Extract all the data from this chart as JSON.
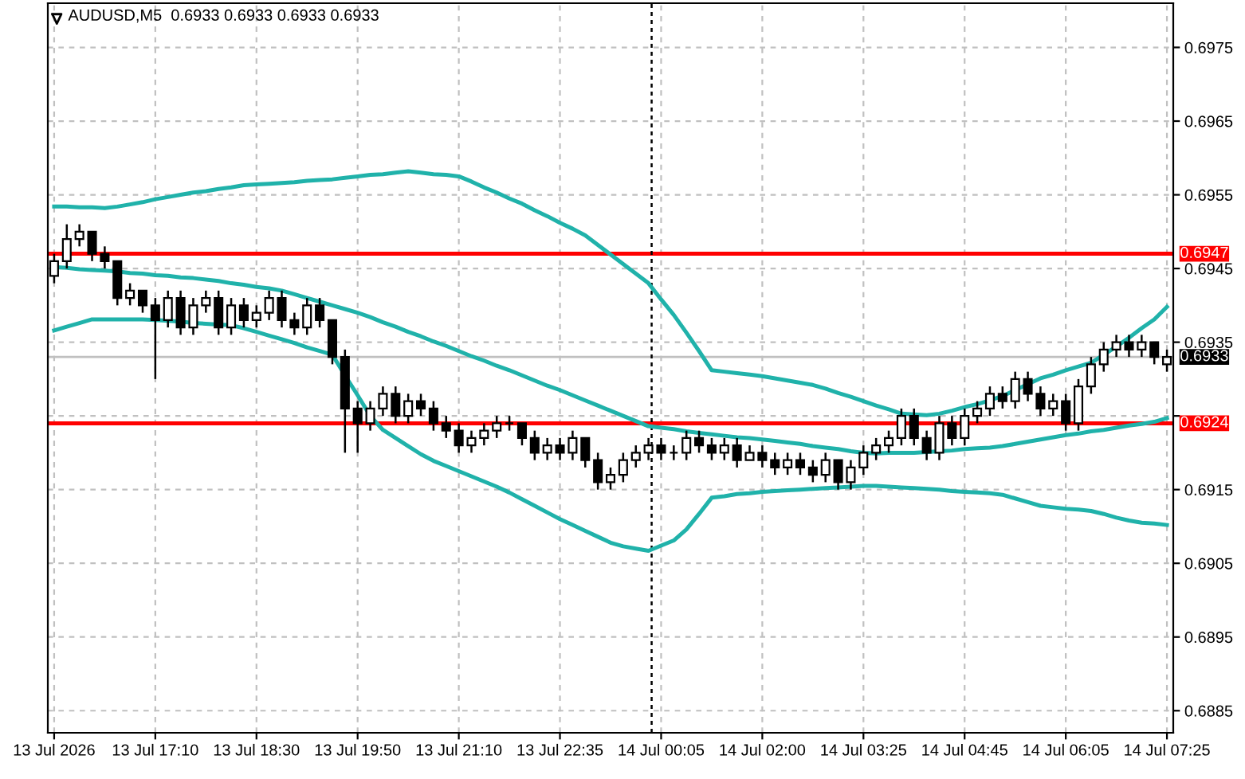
{
  "chart_data": {
    "type": "candlestick",
    "title": "AUDUSD,M5  0.6933 0.6933 0.6933 0.6933",
    "categories": [
      "13 Jul 2026",
      null,
      null,
      null,
      null,
      null,
      null,
      null,
      "13 Jul 17:10",
      null,
      null,
      null,
      null,
      null,
      null,
      null,
      "13 Jul 18:30",
      null,
      null,
      null,
      null,
      null,
      null,
      null,
      "13 Jul 19:50",
      null,
      null,
      null,
      null,
      null,
      null,
      null,
      "13 Jul 21:10",
      null,
      null,
      null,
      null,
      null,
      null,
      null,
      "13 Jul 22:35",
      null,
      null,
      null,
      null,
      null,
      null,
      null,
      "14 Jul 00:05",
      null,
      null,
      null,
      null,
      null,
      null,
      null,
      "14 Jul 02:00",
      null,
      null,
      null,
      null,
      null,
      null,
      null,
      "14 Jul 03:25",
      null,
      null,
      null,
      null,
      null,
      null,
      null,
      "14 Jul 04:45",
      null,
      null,
      null,
      null,
      null,
      null,
      null,
      "14 Jul 06:05",
      null,
      null,
      null,
      null,
      null,
      null,
      null,
      "14 Jul 07:25"
    ],
    "ohlc": [
      [
        0.6944,
        0.6947,
        0.6943,
        0.6946
      ],
      [
        0.6946,
        0.6951,
        0.6945,
        0.6949
      ],
      [
        0.6949,
        0.6951,
        0.6948,
        0.695
      ],
      [
        0.695,
        0.695,
        0.6946,
        0.6947
      ],
      [
        0.6947,
        0.6948,
        0.6945,
        0.6946
      ],
      [
        0.6946,
        0.6946,
        0.694,
        0.6941
      ],
      [
        0.6941,
        0.6943,
        0.694,
        0.6942
      ],
      [
        0.6942,
        0.6942,
        0.6939,
        0.694
      ],
      [
        0.694,
        0.6941,
        0.693,
        0.6938
      ],
      [
        0.6938,
        0.6942,
        0.6937,
        0.6941
      ],
      [
        0.6941,
        0.6942,
        0.6936,
        0.6937
      ],
      [
        0.6937,
        0.6941,
        0.6936,
        0.694
      ],
      [
        0.694,
        0.6942,
        0.6939,
        0.6941
      ],
      [
        0.6941,
        0.6942,
        0.6936,
        0.6937
      ],
      [
        0.6937,
        0.6941,
        0.6936,
        0.694
      ],
      [
        0.694,
        0.6941,
        0.6937,
        0.6938
      ],
      [
        0.6938,
        0.694,
        0.6937,
        0.6939
      ],
      [
        0.6939,
        0.6942,
        0.6938,
        0.6941
      ],
      [
        0.6941,
        0.6942,
        0.6937,
        0.6938
      ],
      [
        0.6938,
        0.6939,
        0.6936,
        0.6937
      ],
      [
        0.6937,
        0.6941,
        0.6936,
        0.694
      ],
      [
        0.694,
        0.6941,
        0.6937,
        0.6938
      ],
      [
        0.6938,
        0.6938,
        0.6932,
        0.6933
      ],
      [
        0.6933,
        0.6934,
        0.692,
        0.6926
      ],
      [
        0.6926,
        0.6927,
        0.692,
        0.6924
      ],
      [
        0.6924,
        0.6927,
        0.6923,
        0.6926
      ],
      [
        0.6926,
        0.6929,
        0.6925,
        0.6928
      ],
      [
        0.6928,
        0.6929,
        0.6924,
        0.6925
      ],
      [
        0.6925,
        0.6928,
        0.6924,
        0.6927
      ],
      [
        0.6927,
        0.6928,
        0.6925,
        0.6926
      ],
      [
        0.6926,
        0.6927,
        0.6923,
        0.6924
      ],
      [
        0.6924,
        0.6925,
        0.6922,
        0.6923
      ],
      [
        0.6923,
        0.6924,
        0.692,
        0.6921
      ],
      [
        0.6921,
        0.6923,
        0.692,
        0.6922
      ],
      [
        0.6922,
        0.6924,
        0.6921,
        0.6923
      ],
      [
        0.6923,
        0.6925,
        0.6922,
        0.6924
      ],
      [
        0.6924,
        0.6925,
        0.6923,
        0.6924
      ],
      [
        0.6924,
        0.6924,
        0.6921,
        0.6922
      ],
      [
        0.6922,
        0.6923,
        0.6919,
        0.692
      ],
      [
        0.692,
        0.6922,
        0.6919,
        0.6921
      ],
      [
        0.6921,
        0.6922,
        0.6919,
        0.692
      ],
      [
        0.692,
        0.6923,
        0.6919,
        0.6922
      ],
      [
        0.6922,
        0.6922,
        0.6918,
        0.6919
      ],
      [
        0.6919,
        0.692,
        0.6915,
        0.6916
      ],
      [
        0.6916,
        0.6918,
        0.6915,
        0.6917
      ],
      [
        0.6917,
        0.692,
        0.6916,
        0.6919
      ],
      [
        0.6919,
        0.6921,
        0.6918,
        0.692
      ],
      [
        0.692,
        0.6922,
        0.6919,
        0.6921
      ],
      [
        0.6921,
        0.6922,
        0.6919,
        0.692
      ],
      [
        0.692,
        0.6921,
        0.6919,
        0.692
      ],
      [
        0.692,
        0.6923,
        0.6919,
        0.6922
      ],
      [
        0.6922,
        0.6923,
        0.692,
        0.6921
      ],
      [
        0.6921,
        0.6922,
        0.6919,
        0.692
      ],
      [
        0.692,
        0.6922,
        0.6919,
        0.6921
      ],
      [
        0.6921,
        0.6922,
        0.6918,
        0.6919
      ],
      [
        0.6919,
        0.6921,
        0.6919,
        0.692
      ],
      [
        0.692,
        0.6921,
        0.6918,
        0.6919
      ],
      [
        0.6919,
        0.692,
        0.6917,
        0.6918
      ],
      [
        0.6918,
        0.692,
        0.6917,
        0.6919
      ],
      [
        0.6919,
        0.692,
        0.6917,
        0.6918
      ],
      [
        0.6918,
        0.6919,
        0.6916,
        0.6917
      ],
      [
        0.6917,
        0.692,
        0.6916,
        0.6919
      ],
      [
        0.6919,
        0.6919,
        0.6915,
        0.6916
      ],
      [
        0.6916,
        0.6919,
        0.6915,
        0.6918
      ],
      [
        0.6918,
        0.6921,
        0.6917,
        0.692
      ],
      [
        0.692,
        0.6922,
        0.6919,
        0.6921
      ],
      [
        0.6921,
        0.6923,
        0.692,
        0.6922
      ],
      [
        0.6922,
        0.6926,
        0.6921,
        0.6925
      ],
      [
        0.6925,
        0.6926,
        0.6921,
        0.6922
      ],
      [
        0.6922,
        0.6923,
        0.6919,
        0.692
      ],
      [
        0.692,
        0.6925,
        0.6919,
        0.6924
      ],
      [
        0.6924,
        0.6925,
        0.6921,
        0.6922
      ],
      [
        0.6922,
        0.6926,
        0.6921,
        0.6925
      ],
      [
        0.6925,
        0.6927,
        0.6924,
        0.6926
      ],
      [
        0.6926,
        0.6929,
        0.6925,
        0.6928
      ],
      [
        0.6928,
        0.6929,
        0.6926,
        0.6927
      ],
      [
        0.6927,
        0.6931,
        0.6926,
        0.693
      ],
      [
        0.693,
        0.6931,
        0.6927,
        0.6928
      ],
      [
        0.6928,
        0.6929,
        0.6925,
        0.6926
      ],
      [
        0.6926,
        0.6928,
        0.6925,
        0.6927
      ],
      [
        0.6927,
        0.6928,
        0.6923,
        0.6924
      ],
      [
        0.6924,
        0.693,
        0.6923,
        0.6929
      ],
      [
        0.6929,
        0.6933,
        0.6928,
        0.6932
      ],
      [
        0.6932,
        0.6935,
        0.6931,
        0.6934
      ],
      [
        0.6934,
        0.6936,
        0.6933,
        0.6935
      ],
      [
        0.6935,
        0.6936,
        0.6933,
        0.6934
      ],
      [
        0.6934,
        0.6936,
        0.6933,
        0.6935
      ],
      [
        0.6935,
        0.6935,
        0.6932,
        0.6933
      ],
      [
        0.6932,
        0.6934,
        0.6931,
        0.6933
      ]
    ],
    "color": "#000000",
    "series": [
      {
        "type": "line",
        "color": "#20b2aa",
        "values": [
          0.69534,
          0.69534,
          0.69533,
          0.69533,
          0.69532,
          0.69534,
          0.69537,
          0.6954,
          0.69544,
          0.69547,
          0.6955,
          0.69553,
          0.69555,
          0.69558,
          0.6956,
          0.69563,
          0.69564,
          0.69565,
          0.69566,
          0.69567,
          0.69569,
          0.6957,
          0.69571,
          0.69573,
          0.69575,
          0.69577,
          0.69578,
          0.6958,
          0.69582,
          0.6958,
          0.69578,
          0.69577,
          0.69575,
          0.69568,
          0.6956,
          0.69553,
          0.69545,
          0.69538,
          0.69529,
          0.69521,
          0.69512,
          0.69504,
          0.69495,
          0.69482,
          0.69469,
          0.69456,
          0.69443,
          0.6943,
          0.69408,
          0.69387,
          0.69363,
          0.69338,
          0.69312,
          0.6931,
          0.69308,
          0.69306,
          0.69304,
          0.69301,
          0.69298,
          0.69295,
          0.69292,
          0.69287,
          0.69281,
          0.69276,
          0.6927,
          0.69264,
          0.69259,
          0.69253,
          0.69252,
          0.69251,
          0.69253,
          0.69257,
          0.69262,
          0.69266,
          0.69271,
          0.69277,
          0.69285,
          0.69293,
          0.69301,
          0.69306,
          0.69312,
          0.69317,
          0.69322,
          0.69333,
          0.69344,
          0.69356,
          0.69369,
          0.69381,
          0.69398
        ]
      },
      {
        "type": "line",
        "color": "#20b2aa",
        "values": [
          0.69452,
          0.69451,
          0.69449,
          0.69448,
          0.69447,
          0.69446,
          0.69444,
          0.69443,
          0.69441,
          0.6944,
          0.69438,
          0.69437,
          0.69435,
          0.69433,
          0.6943,
          0.69428,
          0.69425,
          0.69423,
          0.6942,
          0.69415,
          0.6941,
          0.69405,
          0.694,
          0.69395,
          0.6939,
          0.69384,
          0.69377,
          0.69371,
          0.69364,
          0.69358,
          0.69351,
          0.69345,
          0.69338,
          0.69331,
          0.69325,
          0.69318,
          0.69312,
          0.69305,
          0.69298,
          0.69291,
          0.69285,
          0.69278,
          0.69271,
          0.69264,
          0.69257,
          0.6925,
          0.69243,
          0.69236,
          0.69234,
          0.69232,
          0.69229,
          0.69227,
          0.69225,
          0.69223,
          0.69221,
          0.6922,
          0.69218,
          0.69216,
          0.69214,
          0.69212,
          0.69209,
          0.69207,
          0.69205,
          0.69202,
          0.692,
          0.69199,
          0.692,
          0.692,
          0.692,
          0.69201,
          0.69202,
          0.69203,
          0.69205,
          0.69206,
          0.69207,
          0.69209,
          0.69212,
          0.69215,
          0.69218,
          0.69221,
          0.69224,
          0.69226,
          0.69229,
          0.69231,
          0.69234,
          0.69237,
          0.69239,
          0.69242,
          0.69247
        ]
      },
      {
        "type": "line",
        "color": "#20b2aa",
        "values": [
          0.69366,
          0.69371,
          0.69376,
          0.69381,
          0.69381,
          0.69381,
          0.69381,
          0.69381,
          0.6938,
          0.69379,
          0.69378,
          0.69376,
          0.69375,
          0.69374,
          0.69373,
          0.69369,
          0.69364,
          0.69359,
          0.69354,
          0.69349,
          0.69343,
          0.69338,
          0.69333,
          0.69305,
          0.69278,
          0.6925,
          0.69231,
          0.6922,
          0.69209,
          0.69198,
          0.69189,
          0.69182,
          0.69175,
          0.69168,
          0.69161,
          0.69154,
          0.69146,
          0.69137,
          0.69128,
          0.69119,
          0.6911,
          0.69102,
          0.69094,
          0.69086,
          0.69078,
          0.69073,
          0.6907,
          0.69067,
          0.69074,
          0.69081,
          0.69096,
          0.69117,
          0.69139,
          0.69141,
          0.69144,
          0.69145,
          0.69147,
          0.69148,
          0.69149,
          0.6915,
          0.69151,
          0.69152,
          0.69153,
          0.69154,
          0.69155,
          0.69155,
          0.69154,
          0.69153,
          0.69152,
          0.69151,
          0.6915,
          0.69148,
          0.69147,
          0.69146,
          0.69145,
          0.69143,
          0.69138,
          0.69133,
          0.69128,
          0.69126,
          0.69124,
          0.69123,
          0.69121,
          0.69117,
          0.69112,
          0.69108,
          0.69105,
          0.69104,
          0.69102
        ]
      }
    ],
    "ref_lines": [
      {
        "axis": "y",
        "value": 0.6947,
        "label": "0.6947",
        "color": "#ff0000"
      },
      {
        "axis": "y",
        "value": 0.6924,
        "label": "0.6924",
        "color": "#ff0000"
      },
      {
        "axis": "y",
        "value": 0.6933,
        "label": "0.6933",
        "color": "#c0c0c0"
      }
    ],
    "ylim": [
      0.6882,
      0.6981
    ],
    "yticks": [
      0.6975,
      0.6965,
      0.6955,
      0.6945,
      0.6935,
      {
        "value": 0.6925,
        "label": null
      },
      0.6915,
      0.6905,
      0.6895,
      0.6885
    ],
    "grid": true
  }
}
